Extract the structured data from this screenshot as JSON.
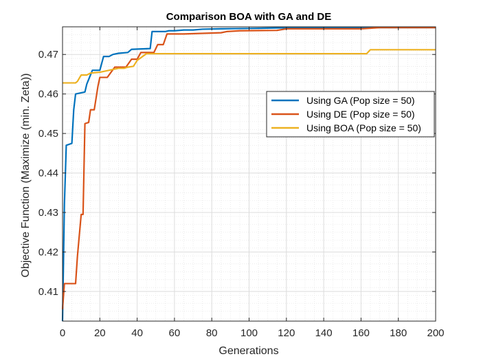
{
  "chart_data": {
    "type": "line",
    "title": "Comparison BOA with GA and DE",
    "xlabel": "Generations",
    "ylabel": "Objective Function (Maximize (min. Zeta))",
    "xlim": [
      0,
      200
    ],
    "ylim": [
      0.4025,
      0.477
    ],
    "xticks": [
      0,
      20,
      40,
      60,
      80,
      100,
      120,
      140,
      160,
      180,
      200
    ],
    "yticks": [
      0.41,
      0.42,
      0.43,
      0.44,
      0.45,
      0.46,
      0.47
    ],
    "ytick_labels": [
      "0.41",
      "0.42",
      "0.43",
      "0.44",
      "0.45",
      "0.46",
      "0.47"
    ],
    "grid": true,
    "minor_grid": true,
    "legend_position": "right",
    "series": [
      {
        "name": "Using GA (Pop size = 50)",
        "color": "#0072BD",
        "points": [
          [
            0,
            0.4025
          ],
          [
            1,
            0.432
          ],
          [
            2,
            0.447
          ],
          [
            5,
            0.4475
          ],
          [
            6,
            0.456
          ],
          [
            7,
            0.46
          ],
          [
            12,
            0.4605
          ],
          [
            13,
            0.4625
          ],
          [
            16,
            0.466
          ],
          [
            20,
            0.466
          ],
          [
            22,
            0.4695
          ],
          [
            25,
            0.4695
          ],
          [
            27,
            0.47
          ],
          [
            30,
            0.4703
          ],
          [
            35,
            0.4705
          ],
          [
            37,
            0.4713
          ],
          [
            47,
            0.4715
          ],
          [
            48,
            0.4758
          ],
          [
            55,
            0.4758
          ],
          [
            57,
            0.476
          ],
          [
            60,
            0.476
          ],
          [
            65,
            0.4762
          ],
          [
            70,
            0.4762
          ],
          [
            75,
            0.4764
          ],
          [
            85,
            0.4765
          ],
          [
            100,
            0.4766
          ],
          [
            125,
            0.4768
          ],
          [
            200,
            0.4768
          ]
        ]
      },
      {
        "name": "Using DE (Pop size = 50)",
        "color": "#D95319",
        "points": [
          [
            0,
            0.4055
          ],
          [
            1,
            0.412
          ],
          [
            7,
            0.412
          ],
          [
            8,
            0.419
          ],
          [
            10,
            0.4295
          ],
          [
            11,
            0.4295
          ],
          [
            12,
            0.4525
          ],
          [
            14,
            0.4528
          ],
          [
            15,
            0.456
          ],
          [
            17,
            0.456
          ],
          [
            19,
            0.462
          ],
          [
            20,
            0.4642
          ],
          [
            24,
            0.4642
          ],
          [
            26,
            0.4655
          ],
          [
            28,
            0.4668
          ],
          [
            34,
            0.4668
          ],
          [
            37,
            0.4688
          ],
          [
            40,
            0.4688
          ],
          [
            42,
            0.4705
          ],
          [
            49,
            0.4705
          ],
          [
            51,
            0.4725
          ],
          [
            54,
            0.4725
          ],
          [
            56,
            0.4752
          ],
          [
            65,
            0.4752
          ],
          [
            85,
            0.4755
          ],
          [
            88,
            0.4758
          ],
          [
            95,
            0.476
          ],
          [
            115,
            0.4761
          ],
          [
            120,
            0.4765
          ],
          [
            160,
            0.4765
          ],
          [
            170,
            0.4768
          ],
          [
            200,
            0.4768
          ]
        ]
      },
      {
        "name": "Using BOA (Pop size = 50)",
        "color": "#EDB120",
        "points": [
          [
            0,
            0.4628
          ],
          [
            7,
            0.4628
          ],
          [
            8,
            0.4632
          ],
          [
            10,
            0.4648
          ],
          [
            13,
            0.4648
          ],
          [
            15,
            0.4653
          ],
          [
            20,
            0.4655
          ],
          [
            25,
            0.466
          ],
          [
            30,
            0.4665
          ],
          [
            33,
            0.4665
          ],
          [
            35,
            0.4668
          ],
          [
            38,
            0.467
          ],
          [
            40,
            0.4685
          ],
          [
            45,
            0.4702
          ],
          [
            163,
            0.4702
          ],
          [
            165,
            0.4712
          ],
          [
            200,
            0.4712
          ]
        ]
      }
    ]
  }
}
